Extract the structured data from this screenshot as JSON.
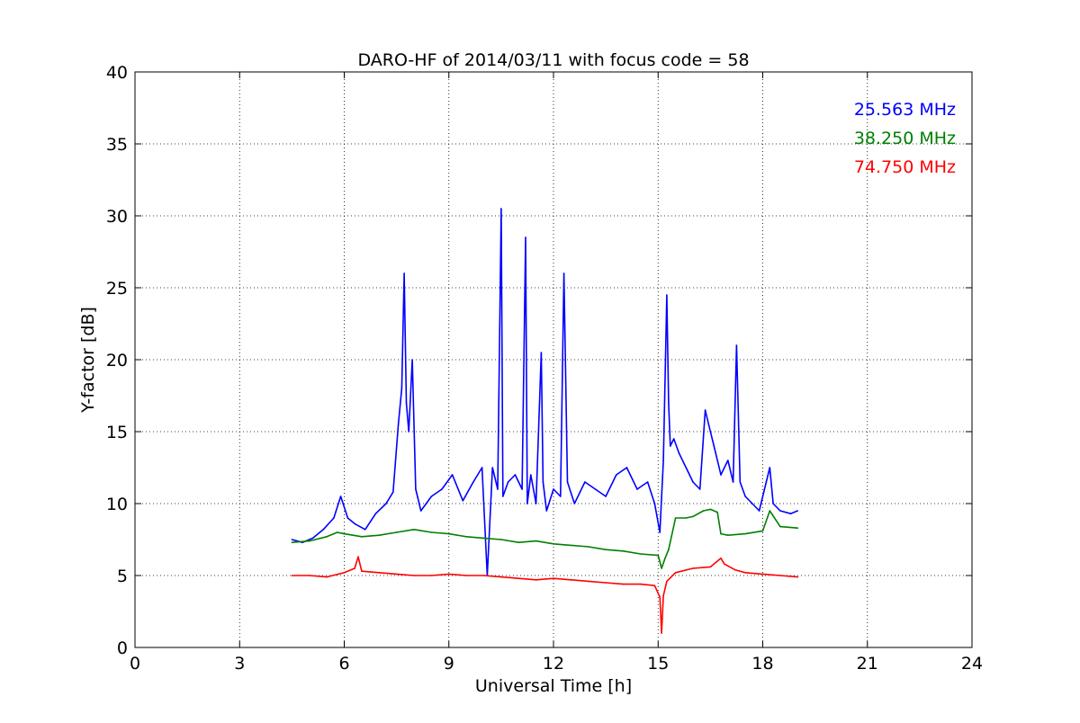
{
  "chart_data": {
    "type": "line",
    "title": "DARO-HF of 2014/03/11 with focus code = 58",
    "xlabel": "Universal Time [h]",
    "ylabel": "Y-factor [dB]",
    "xlim": [
      0,
      24
    ],
    "ylim": [
      0,
      40
    ],
    "xticks": [
      0,
      3,
      6,
      9,
      12,
      15,
      18,
      21,
      24
    ],
    "yticks": [
      0,
      5,
      10,
      15,
      20,
      25,
      30,
      35,
      40
    ],
    "grid": true,
    "legend_position": "top-right",
    "series": [
      {
        "name": "25.563 MHz",
        "color": "#0000ff",
        "x": [
          4.5,
          4.8,
          5.1,
          5.4,
          5.7,
          5.9,
          6.1,
          6.3,
          6.6,
          6.9,
          7.2,
          7.4,
          7.55,
          7.65,
          7.72,
          7.78,
          7.85,
          7.95,
          8.05,
          8.2,
          8.5,
          8.8,
          9.1,
          9.4,
          9.7,
          9.95,
          10.1,
          10.25,
          10.4,
          10.5,
          10.55,
          10.7,
          10.9,
          11.1,
          11.2,
          11.25,
          11.35,
          11.5,
          11.65,
          11.7,
          11.8,
          12.0,
          12.2,
          12.3,
          12.4,
          12.6,
          12.9,
          13.2,
          13.5,
          13.8,
          14.1,
          14.4,
          14.7,
          14.9,
          15.05,
          15.15,
          15.25,
          15.3,
          15.35,
          15.45,
          15.6,
          15.8,
          16.0,
          16.2,
          16.35,
          16.45,
          16.6,
          16.8,
          17.0,
          17.15,
          17.25,
          17.35,
          17.5,
          17.7,
          17.9,
          18.1,
          18.2,
          18.3,
          18.5,
          18.8,
          19.0
        ],
        "y": [
          7.5,
          7.3,
          7.6,
          8.2,
          9.0,
          10.5,
          9.0,
          8.6,
          8.2,
          9.3,
          10.0,
          10.8,
          15.5,
          18.0,
          26.0,
          17.0,
          15.0,
          20.0,
          11.0,
          9.5,
          10.5,
          11.0,
          12.0,
          10.2,
          11.5,
          12.5,
          5.0,
          12.5,
          11.0,
          30.5,
          10.5,
          11.5,
          12.0,
          11.0,
          28.5,
          10.0,
          12.0,
          10.0,
          20.5,
          11.5,
          9.5,
          11.0,
          10.5,
          26.0,
          11.5,
          10.0,
          11.5,
          11.0,
          10.5,
          12.0,
          12.5,
          11.0,
          11.5,
          10.0,
          8.0,
          13.0,
          24.5,
          17.0,
          14.0,
          14.5,
          13.5,
          12.5,
          11.5,
          11.0,
          16.5,
          15.5,
          14.0,
          12.0,
          13.0,
          11.5,
          21.0,
          11.5,
          10.5,
          10.0,
          9.5,
          11.5,
          12.5,
          10.0,
          9.5,
          9.3,
          9.5
        ]
      },
      {
        "name": "38.250 MHz",
        "color": "#008000",
        "x": [
          4.5,
          5.0,
          5.5,
          5.8,
          6.0,
          6.5,
          7.0,
          7.5,
          8.0,
          8.5,
          9.0,
          9.5,
          10.0,
          10.5,
          11.0,
          11.5,
          12.0,
          12.5,
          13.0,
          13.5,
          14.0,
          14.5,
          15.0,
          15.1,
          15.2,
          15.3,
          15.5,
          15.8,
          16.0,
          16.3,
          16.5,
          16.7,
          16.8,
          17.0,
          17.5,
          18.0,
          18.2,
          18.5,
          19.0
        ],
        "y": [
          7.3,
          7.4,
          7.7,
          8.0,
          7.9,
          7.7,
          7.8,
          8.0,
          8.2,
          8.0,
          7.9,
          7.7,
          7.6,
          7.5,
          7.3,
          7.4,
          7.2,
          7.1,
          7.0,
          6.8,
          6.7,
          6.5,
          6.4,
          5.5,
          6.2,
          6.8,
          9.0,
          9.0,
          9.1,
          9.5,
          9.6,
          9.4,
          7.9,
          7.8,
          7.9,
          8.1,
          9.5,
          8.4,
          8.3
        ]
      },
      {
        "name": "74.750 MHz",
        "color": "#ff0000",
        "x": [
          4.5,
          5.0,
          5.5,
          6.0,
          6.3,
          6.4,
          6.5,
          7.0,
          7.5,
          8.0,
          8.5,
          9.0,
          9.5,
          10.0,
          10.5,
          11.0,
          11.5,
          12.0,
          12.5,
          13.0,
          13.5,
          14.0,
          14.5,
          14.9,
          15.05,
          15.1,
          15.15,
          15.25,
          15.5,
          16.0,
          16.5,
          16.8,
          16.9,
          17.2,
          17.5,
          18.0,
          18.5,
          19.0
        ],
        "y": [
          5.0,
          5.0,
          4.9,
          5.2,
          5.5,
          6.3,
          5.3,
          5.2,
          5.1,
          5.0,
          5.0,
          5.1,
          5.0,
          5.0,
          4.9,
          4.8,
          4.7,
          4.8,
          4.7,
          4.6,
          4.5,
          4.4,
          4.4,
          4.3,
          3.5,
          1.0,
          3.6,
          4.6,
          5.2,
          5.5,
          5.6,
          6.2,
          5.8,
          5.4,
          5.2,
          5.1,
          5.0,
          4.9
        ]
      }
    ]
  }
}
